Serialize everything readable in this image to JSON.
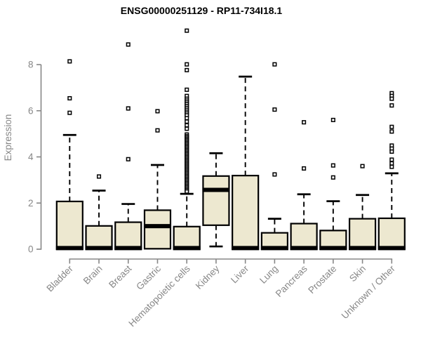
{
  "chart_data": {
    "type": "box",
    "title": "ENSG00000251129 - RP11-734I18.1",
    "ylabel": "Expression",
    "xlabel": "",
    "ylim": [
      0,
      9.6
    ],
    "yticks": [
      0,
      2,
      4,
      6,
      8
    ],
    "grid": false,
    "legend": "none",
    "categories": [
      "Bladder",
      "Brain",
      "Breast",
      "Gastric",
      "Hematopoietic cells",
      "Kidney",
      "Liver",
      "Lung",
      "Pancreas",
      "Prostate",
      "Skin",
      "Unknown / Other"
    ],
    "boxes": [
      {
        "label": "Bladder",
        "q1": 0,
        "median": 0.05,
        "q3": 2.07,
        "whisker_low": null,
        "whisker_high": 4.95,
        "outliers": [
          8.14,
          6.54,
          5.91
        ]
      },
      {
        "label": "Brain",
        "q1": 0,
        "median": 0.05,
        "q3": 1.01,
        "whisker_low": null,
        "whisker_high": 2.54,
        "outliers": [
          3.15
        ]
      },
      {
        "label": "Breast",
        "q1": 0,
        "median": 0.05,
        "q3": 1.17,
        "whisker_low": null,
        "whisker_high": 1.96,
        "outliers": [
          8.87,
          6.1,
          3.9
        ]
      },
      {
        "label": "Gastric",
        "q1": 0.02,
        "median": 1.0,
        "q3": 1.69,
        "whisker_low": null,
        "whisker_high": 3.65,
        "outliers": [
          5.98,
          5.15
        ]
      },
      {
        "label": "Hematopoietic cells",
        "q1": 0,
        "median": 0.05,
        "q3": 0.98,
        "whisker_low": null,
        "whisker_high": 2.4,
        "outliers": [
          9.47,
          8.01,
          7.76,
          6.91,
          6.64,
          6.52,
          6.44,
          6.36,
          6.28,
          6.2,
          6.12,
          6.04,
          5.96,
          5.88,
          5.8,
          5.68,
          5.53,
          5.37,
          5.22,
          4.97,
          4.9,
          4.84,
          4.78,
          4.72,
          4.66,
          4.6,
          4.54,
          4.48,
          4.42,
          4.36,
          4.3,
          4.24,
          4.18,
          4.12,
          4.06,
          4.0,
          3.94,
          3.88,
          3.82,
          3.76,
          3.7,
          3.64,
          3.58,
          3.52,
          3.46,
          3.4,
          3.34,
          3.28,
          3.22,
          3.16,
          3.1,
          3.04,
          2.98,
          2.92,
          2.86,
          2.8,
          2.74,
          2.68,
          2.62,
          2.56,
          2.5
        ]
      },
      {
        "label": "Kidney",
        "q1": 1.04,
        "median": 2.57,
        "q3": 3.17,
        "whisker_low": 0.12,
        "whisker_high": 4.16,
        "outliers": []
      },
      {
        "label": "Liver",
        "q1": 0,
        "median": 0.05,
        "q3": 3.19,
        "whisker_low": null,
        "whisker_high": 7.48,
        "outliers": []
      },
      {
        "label": "Lung",
        "q1": 0,
        "median": 0.05,
        "q3": 0.71,
        "whisker_low": null,
        "whisker_high": 1.32,
        "outliers": [
          8.01,
          6.05,
          3.24
        ]
      },
      {
        "label": "Pancreas",
        "q1": 0,
        "median": 0.05,
        "q3": 1.11,
        "whisker_low": null,
        "whisker_high": 2.38,
        "outliers": [
          5.5,
          3.5
        ]
      },
      {
        "label": "Prostate",
        "q1": 0,
        "median": 0.05,
        "q3": 0.81,
        "whisker_low": null,
        "whisker_high": 2.08,
        "outliers": [
          5.6,
          3.63,
          3.11
        ]
      },
      {
        "label": "Skin",
        "q1": 0,
        "median": 0.05,
        "q3": 1.32,
        "whisker_low": null,
        "whisker_high": 2.35,
        "outliers": [
          3.6
        ]
      },
      {
        "label": "Unknown / Other",
        "q1": 0,
        "median": 0.05,
        "q3": 1.34,
        "whisker_low": null,
        "whisker_high": 3.29,
        "outliers": [
          6.76,
          6.64,
          6.52,
          6.23,
          5.3,
          5.1,
          4.49,
          4.36,
          4.23,
          3.88,
          3.72,
          3.57
        ]
      }
    ],
    "colors": {
      "box_fill": "#EDE8D0",
      "box_border": "#000000",
      "median": "#000000",
      "whisker": "#000000",
      "outlier": "#000000",
      "outlier_fill": "#ffffff",
      "axis": "#878787",
      "tick_label": "#878787",
      "title": "#000000"
    }
  }
}
